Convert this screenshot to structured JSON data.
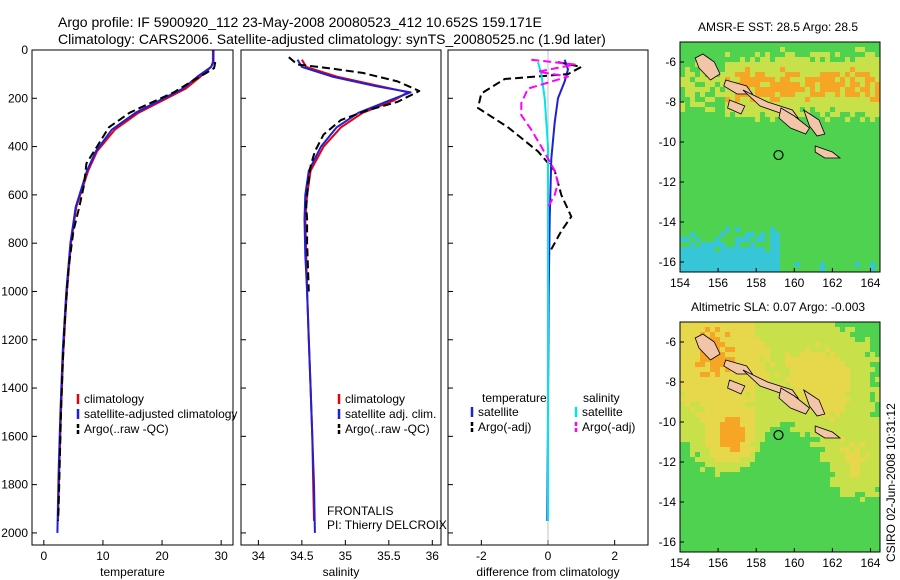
{
  "header": {
    "line1": "Argo profile: IF 5900920_112 23-May-2008 20080523_412 10.652S 159.171E",
    "line2": "Climatology: CARS2006. Satellite-adjusted climatology: synTS_20080525.nc (1.9d later)"
  },
  "stamp": "CSIRO 02-Jun-2008 10:31:12",
  "chart_data": [
    {
      "type": "line",
      "panel": "temperature",
      "xlabel": "temperature",
      "ylabel": "",
      "xlim": [
        -2,
        32
      ],
      "ylim": [
        2050,
        0
      ],
      "xticks": [
        0,
        10,
        20,
        30
      ],
      "yticks": [
        0,
        200,
        400,
        600,
        800,
        1000,
        1200,
        1400,
        1600,
        1800,
        2000
      ],
      "legend_position": "lower-right",
      "series": [
        {
          "name": "climatology",
          "color": "#e8000b",
          "style": "solid",
          "points": [
            [
              28.6,
              0
            ],
            [
              28.6,
              50
            ],
            [
              28.3,
              70
            ],
            [
              26.5,
              110
            ],
            [
              24,
              160
            ],
            [
              20,
              210
            ],
            [
              16,
              260
            ],
            [
              12,
              330
            ],
            [
              9,
              420
            ],
            [
              7.5,
              500
            ],
            [
              5.5,
              650
            ],
            [
              4.6,
              800
            ],
            [
              3.9,
              1000
            ],
            [
              3.3,
              1250
            ],
            [
              2.9,
              1500
            ],
            [
              2.6,
              1750
            ],
            [
              2.4,
              1950
            ]
          ]
        },
        {
          "name": "satellite-adjusted climatology",
          "color": "#1f1fd6",
          "style": "solid",
          "points": [
            [
              28.7,
              0
            ],
            [
              28.7,
              50
            ],
            [
              28.3,
              70
            ],
            [
              26,
              110
            ],
            [
              23.5,
              160
            ],
            [
              19.5,
              210
            ],
            [
              15.5,
              260
            ],
            [
              11.5,
              330
            ],
            [
              8.8,
              420
            ],
            [
              7.3,
              500
            ],
            [
              5.4,
              650
            ],
            [
              4.5,
              800
            ],
            [
              3.8,
              1000
            ],
            [
              3.2,
              1250
            ],
            [
              2.8,
              1500
            ],
            [
              2.5,
              1750
            ],
            [
              2.3,
              2000
            ]
          ]
        },
        {
          "name": "Argo(..raw -QC)",
          "color": "#000000",
          "style": "dashed",
          "points": [
            [
              29,
              50
            ],
            [
              28.8,
              75
            ],
            [
              27.5,
              95
            ],
            [
              25,
              130
            ],
            [
              22,
              175
            ],
            [
              18,
              220
            ],
            [
              14.5,
              260
            ],
            [
              11,
              320
            ],
            [
              9,
              400
            ],
            [
              7.2,
              470
            ],
            [
              6.8,
              560
            ],
            [
              6,
              650
            ],
            [
              5,
              750
            ],
            [
              4.2,
              900
            ],
            [
              3.6,
              1100
            ],
            [
              3.2,
              1300
            ],
            [
              2.9,
              1500
            ],
            [
              2.7,
              1700
            ],
            [
              2.5,
              1900
            ],
            [
              2.4,
              1950
            ]
          ]
        }
      ]
    },
    {
      "type": "line",
      "panel": "salinity",
      "xlabel": "salinity",
      "ylabel": "",
      "xlim": [
        33.8,
        36.1
      ],
      "ylim": [
        2050,
        0
      ],
      "xticks": [
        34,
        34.5,
        35,
        35.5,
        36
      ],
      "xtick_labels": [
        "34",
        "34.5",
        "35",
        "35.5",
        "36"
      ],
      "legend_position": "lower-right",
      "annotations": [
        "FRONTALIS",
        "PI: Thierry DELCROIX"
      ],
      "series": [
        {
          "name": "climatology",
          "color": "#e8000b",
          "style": "solid",
          "points": [
            [
              34.5,
              40
            ],
            [
              34.55,
              70
            ],
            [
              34.9,
              110
            ],
            [
              35.4,
              150
            ],
            [
              35.72,
              175
            ],
            [
              35.55,
              210
            ],
            [
              35.2,
              260
            ],
            [
              34.95,
              320
            ],
            [
              34.75,
              400
            ],
            [
              34.6,
              500
            ],
            [
              34.56,
              600
            ],
            [
              34.54,
              700
            ],
            [
              34.55,
              850
            ],
            [
              34.56,
              1000
            ],
            [
              34.58,
              1200
            ],
            [
              34.6,
              1400
            ],
            [
              34.62,
              1600
            ],
            [
              34.63,
              1800
            ],
            [
              34.64,
              1950
            ]
          ]
        },
        {
          "name": "satellite adj. clim.",
          "color": "#1f1fd6",
          "style": "solid",
          "points": [
            [
              34.45,
              40
            ],
            [
              34.5,
              70
            ],
            [
              34.85,
              110
            ],
            [
              35.35,
              150
            ],
            [
              35.75,
              175
            ],
            [
              35.5,
              210
            ],
            [
              35.15,
              260
            ],
            [
              34.9,
              320
            ],
            [
              34.72,
              400
            ],
            [
              34.58,
              500
            ],
            [
              34.54,
              600
            ],
            [
              34.53,
              700
            ],
            [
              34.54,
              850
            ],
            [
              34.56,
              1000
            ],
            [
              34.58,
              1200
            ],
            [
              34.6,
              1400
            ],
            [
              34.62,
              1600
            ],
            [
              34.64,
              1800
            ],
            [
              34.65,
              2000
            ]
          ]
        },
        {
          "name": "Argo(..raw -QC)",
          "color": "#000000",
          "style": "dashed",
          "points": [
            [
              34.35,
              30
            ],
            [
              34.45,
              60
            ],
            [
              34.8,
              75
            ],
            [
              35.2,
              95
            ],
            [
              35.6,
              130
            ],
            [
              35.85,
              170
            ],
            [
              35.6,
              215
            ],
            [
              35.25,
              250
            ],
            [
              34.95,
              290
            ],
            [
              34.75,
              350
            ],
            [
              34.65,
              420
            ],
            [
              34.6,
              480
            ],
            [
              34.57,
              560
            ],
            [
              34.55,
              650
            ],
            [
              34.56,
              700
            ],
            [
              34.56,
              800
            ],
            [
              34.58,
              1000
            ]
          ]
        }
      ]
    },
    {
      "type": "line",
      "panel": "difference",
      "xlabel": "difference from climatology",
      "ylabel": "",
      "xlim": [
        -3,
        3
      ],
      "ylim": [
        2050,
        0
      ],
      "xticks": [
        -2,
        0,
        2
      ],
      "legend_position": "lower",
      "legend_groups": [
        "temperature",
        "salinity"
      ],
      "series": [
        {
          "name": "satellite",
          "group": "temperature",
          "color": "#1f1fd6",
          "style": "solid",
          "points": [
            [
              0.5,
              40
            ],
            [
              0.6,
              80
            ],
            [
              0.5,
              130
            ],
            [
              0.3,
              200
            ],
            [
              0.2,
              300
            ],
            [
              0.1,
              450
            ],
            [
              0.05,
              700
            ],
            [
              0.02,
              1000
            ],
            [
              0,
              1500
            ],
            [
              -0.02,
              1950
            ]
          ]
        },
        {
          "name": "Argo(-adj)",
          "group": "temperature",
          "color": "#000000",
          "style": "dashed",
          "points": [
            [
              0.3,
              50
            ],
            [
              1,
              70
            ],
            [
              0.6,
              100
            ],
            [
              -1.3,
              120
            ],
            [
              -2,
              180
            ],
            [
              -2.1,
              240
            ],
            [
              -1.2,
              320
            ],
            [
              -0.3,
              420
            ],
            [
              0.2,
              500
            ],
            [
              0.4,
              600
            ],
            [
              0.7,
              690
            ],
            [
              0.4,
              750
            ],
            [
              0,
              850
            ]
          ]
        },
        {
          "name": "satellite",
          "group": "salinity",
          "color": "#00e5e5",
          "style": "solid",
          "points": [
            [
              -0.3,
              50
            ],
            [
              -0.2,
              100
            ],
            [
              -0.1,
              200
            ],
            [
              0,
              400
            ],
            [
              0,
              800
            ],
            [
              0,
              1200
            ],
            [
              0,
              1600
            ],
            [
              0,
              1950
            ]
          ]
        },
        {
          "name": "Argo(-adj)",
          "group": "salinity",
          "color": "#ff00ff",
          "style": "dashed",
          "points": [
            [
              -0.5,
              40
            ],
            [
              0.8,
              60
            ],
            [
              -0.3,
              90
            ],
            [
              0.6,
              110
            ],
            [
              -0.6,
              160
            ],
            [
              -0.8,
              220
            ],
            [
              -0.8,
              270
            ],
            [
              -0.5,
              330
            ],
            [
              -0.2,
              400
            ],
            [
              0.2,
              500
            ],
            [
              0.3,
              550
            ],
            [
              0.2,
              600
            ],
            [
              0,
              650
            ]
          ]
        }
      ]
    }
  ],
  "maps": [
    {
      "title": "AMSR-E SST: 28.5 Argo: 28.5",
      "xticks": [
        "154",
        "156",
        "158",
        "160",
        "162",
        "164"
      ],
      "yticks": [
        "-6",
        "-8",
        "-10",
        "-12",
        "-14",
        "-16"
      ],
      "xlim": [
        154,
        164.5
      ],
      "ylim": [
        -16.5,
        -5
      ]
    },
    {
      "title": "Altimetric SLA: 0.07 Argo: -0.003",
      "xticks": [
        "154",
        "156",
        "158",
        "160",
        "162",
        "164"
      ],
      "yticks": [
        "-6",
        "-8",
        "-10",
        "-12",
        "-14",
        "-16"
      ],
      "xlim": [
        154,
        164.5
      ],
      "ylim": [
        -16.5,
        -5
      ]
    }
  ],
  "legends": {
    "temp": [
      "climatology",
      "satellite-adjusted climatology",
      "Argo(..raw -QC)"
    ],
    "sal": [
      "climatology",
      "satellite adj. clim.",
      "Argo(..raw -QC)"
    ],
    "diff_heads": [
      "temperature",
      "salinity"
    ],
    "diff": [
      "satellite",
      "Argo(-adj)",
      "satellite",
      "Argo(-adj)"
    ]
  },
  "colors": {
    "climatology": "#e8000b",
    "satellite": "#1f1fd6",
    "argo": "#000000",
    "sal_satellite": "#00e5e5",
    "sal_argo": "#ff00ff",
    "map_green": "#4fd24f",
    "map_yellow": "#c8e04a",
    "map_orange": "#f7a524",
    "map_cyan": "#36c6d8",
    "land": "#f2c4a8"
  }
}
